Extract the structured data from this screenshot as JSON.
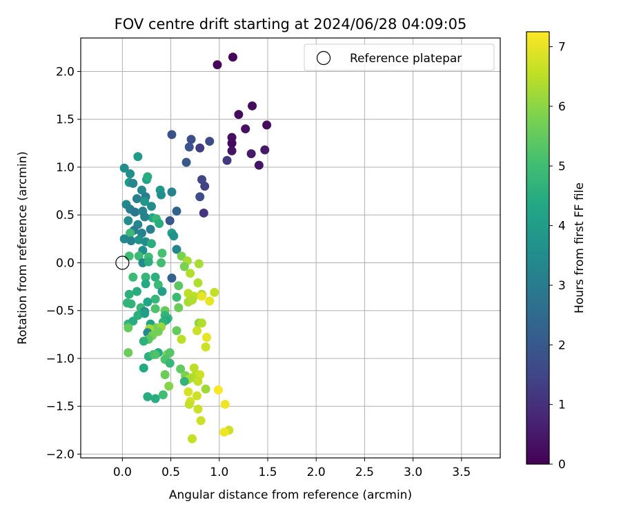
{
  "chart_data": {
    "type": "scatter",
    "title": "FOV centre drift starting at 2024/06/28 04:09:05",
    "xlabel": "Angular distance from reference (arcmin)",
    "ylabel": "Rotation from reference (arcmin)",
    "xlim": [
      -0.43,
      3.9
    ],
    "ylim": [
      -2.04,
      2.35
    ],
    "x_ticks": [
      0.0,
      0.5,
      1.0,
      1.5,
      2.0,
      2.5,
      3.0,
      3.5
    ],
    "y_ticks": [
      -2.0,
      -1.5,
      -1.0,
      -0.5,
      0.0,
      0.5,
      1.0,
      1.5,
      2.0
    ],
    "x_tick_labels": [
      "0.0",
      "0.5",
      "1.0",
      "1.5",
      "2.0",
      "2.5",
      "3.0",
      "3.5"
    ],
    "y_tick_labels": [
      "−2.0",
      "−1.5",
      "−1.0",
      "−0.5",
      "0.0",
      "0.5",
      "1.0",
      "1.5",
      "2.0"
    ],
    "grid": true,
    "legend": {
      "placement": "top-right",
      "entries": [
        {
          "label": "Reference platepar",
          "marker": "open-circle"
        }
      ]
    },
    "reference_point": {
      "x": 0.0,
      "y": 0.0
    },
    "colorbar": {
      "label": "Hours from first FF file",
      "range": [
        0,
        7.25
      ],
      "ticks": [
        0,
        1,
        2,
        3,
        4,
        5,
        6,
        7
      ],
      "colormap": "viridis"
    },
    "points_columns": [
      "x",
      "y",
      "hours"
    ],
    "points": [
      [
        0.98,
        2.07,
        0.1
      ],
      [
        1.14,
        2.15,
        0.1
      ],
      [
        1.2,
        1.55,
        0.2
      ],
      [
        1.34,
        1.64,
        0.2
      ],
      [
        1.27,
        1.4,
        0.3
      ],
      [
        1.49,
        1.44,
        0.2
      ],
      [
        1.13,
        1.31,
        0.3
      ],
      [
        1.13,
        1.25,
        0.2
      ],
      [
        1.13,
        1.17,
        0.4
      ],
      [
        1.33,
        1.14,
        0.5
      ],
      [
        1.47,
        1.18,
        0.5
      ],
      [
        1.41,
        1.02,
        0.4
      ],
      [
        1.08,
        1.07,
        1.2
      ],
      [
        0.51,
        1.34,
        1.8
      ],
      [
        0.71,
        1.29,
        1.7
      ],
      [
        0.69,
        1.21,
        1.9
      ],
      [
        0.8,
        1.2,
        1.3
      ],
      [
        0.9,
        1.27,
        1.6
      ],
      [
        0.66,
        1.05,
        2.0
      ],
      [
        0.82,
        0.87,
        1.5
      ],
      [
        0.85,
        0.8,
        1.4
      ],
      [
        0.8,
        0.69,
        1.7
      ],
      [
        0.84,
        0.52,
        1.1
      ],
      [
        0.56,
        0.54,
        2.3
      ],
      [
        0.49,
        0.44,
        2.0
      ],
      [
        0.51,
        0.74,
        3.2
      ],
      [
        0.39,
        0.76,
        3.8
      ],
      [
        0.4,
        0.71,
        3.6
      ],
      [
        0.3,
        0.59,
        3.5
      ],
      [
        0.25,
        0.87,
        4.2
      ],
      [
        0.16,
        1.11,
        3.9
      ],
      [
        0.02,
        0.99,
        3.5
      ],
      [
        0.08,
        0.93,
        3.6
      ],
      [
        0.07,
        0.84,
        3.9
      ],
      [
        0.11,
        0.83,
        3.3
      ],
      [
        0.26,
        0.9,
        4.5
      ],
      [
        0.2,
        0.76,
        3.4
      ],
      [
        0.24,
        0.69,
        3.0
      ],
      [
        0.15,
        0.67,
        3.1
      ],
      [
        0.23,
        0.64,
        3.8
      ],
      [
        0.04,
        0.61,
        3.4
      ],
      [
        0.08,
        0.56,
        3.1
      ],
      [
        0.13,
        0.53,
        2.9
      ],
      [
        0.21,
        0.54,
        3.2
      ],
      [
        0.31,
        0.47,
        4.3
      ],
      [
        0.35,
        0.46,
        4.8
      ],
      [
        0.38,
        0.41,
        4.5
      ],
      [
        0.06,
        0.44,
        3.5
      ],
      [
        0.16,
        0.4,
        3.3
      ],
      [
        0.23,
        0.48,
        3.2
      ],
      [
        0.29,
        0.35,
        3.1
      ],
      [
        0.12,
        0.34,
        3.0
      ],
      [
        0.08,
        0.31,
        4.9
      ],
      [
        0.2,
        0.31,
        3.2
      ],
      [
        0.51,
        0.31,
        4.0
      ],
      [
        0.53,
        0.28,
        3.7
      ],
      [
        0.02,
        0.25,
        3.4
      ],
      [
        0.09,
        0.23,
        3.2
      ],
      [
        0.17,
        0.24,
        3.7
      ],
      [
        0.24,
        0.22,
        3.5
      ],
      [
        0.3,
        0.2,
        4.5
      ],
      [
        0.56,
        0.14,
        3.3
      ],
      [
        0.21,
        0.13,
        3.6
      ],
      [
        0.41,
        0.1,
        5.1
      ],
      [
        0.07,
        0.07,
        5.0
      ],
      [
        0.17,
        0.07,
        4.9
      ],
      [
        0.27,
        0.06,
        5.0
      ],
      [
        0.21,
        0.0,
        3.4
      ],
      [
        0.27,
        0.01,
        4.6
      ],
      [
        0.4,
        0.0,
        5.0
      ],
      [
        0.61,
        0.07,
        5.8
      ],
      [
        0.67,
        0.02,
        6.3
      ],
      [
        0.64,
        -0.04,
        5.8
      ],
      [
        0.79,
        -0.01,
        6.3
      ],
      [
        0.7,
        -0.11,
        6.4
      ],
      [
        0.11,
        -0.15,
        4.9
      ],
      [
        0.24,
        -0.15,
        4.8
      ],
      [
        0.34,
        -0.15,
        4.6
      ],
      [
        0.51,
        -0.16,
        2.3
      ],
      [
        0.24,
        -0.22,
        4.4
      ],
      [
        0.37,
        -0.23,
        4.9
      ],
      [
        0.58,
        -0.24,
        5.4
      ],
      [
        0.78,
        -0.21,
        6.4
      ],
      [
        0.95,
        -0.31,
        6.6
      ],
      [
        0.41,
        -0.3,
        4.1
      ],
      [
        0.07,
        -0.33,
        4.6
      ],
      [
        0.15,
        -0.3,
        4.5
      ],
      [
        0.68,
        -0.32,
        6.5
      ],
      [
        0.74,
        -0.35,
        6.5
      ],
      [
        0.82,
        -0.33,
        6.3
      ],
      [
        0.82,
        -0.35,
        7.0
      ],
      [
        0.56,
        -0.36,
        4.9
      ],
      [
        0.34,
        -0.38,
        4.8
      ],
      [
        0.05,
        -0.42,
        4.7
      ],
      [
        0.09,
        -0.43,
        4.7
      ],
      [
        0.26,
        -0.41,
        4.3
      ],
      [
        0.68,
        -0.41,
        6.3
      ],
      [
        0.72,
        -0.39,
        6.4
      ],
      [
        0.9,
        -0.4,
        7.0
      ],
      [
        0.19,
        -0.47,
        4.8
      ],
      [
        0.34,
        -0.48,
        5.2
      ],
      [
        0.44,
        -0.5,
        5.5
      ],
      [
        0.58,
        -0.47,
        5.6
      ],
      [
        0.23,
        -0.51,
        3.4
      ],
      [
        0.16,
        -0.55,
        4.6
      ],
      [
        0.23,
        -0.53,
        4.1
      ],
      [
        0.44,
        -0.55,
        4.7
      ],
      [
        0.47,
        -0.58,
        4.8
      ],
      [
        0.45,
        -0.6,
        4.4
      ],
      [
        0.79,
        -0.63,
        6.0
      ],
      [
        0.06,
        -0.64,
        4.7
      ],
      [
        0.11,
        -0.61,
        4.5
      ],
      [
        0.29,
        -0.64,
        4.2
      ],
      [
        0.42,
        -0.62,
        4.6
      ],
      [
        0.82,
        -0.63,
        6.4
      ],
      [
        0.06,
        -0.68,
        5.5
      ],
      [
        0.35,
        -0.68,
        5.7
      ],
      [
        0.4,
        -0.67,
        6.1
      ],
      [
        0.28,
        -0.69,
        6.2
      ],
      [
        0.37,
        -0.72,
        5.7
      ],
      [
        0.56,
        -0.71,
        5.5
      ],
      [
        0.77,
        -0.71,
        6.7
      ],
      [
        0.26,
        -0.73,
        3.4
      ],
      [
        0.31,
        -0.76,
        5.7
      ],
      [
        0.27,
        -0.8,
        5.4
      ],
      [
        0.22,
        -0.82,
        4.6
      ],
      [
        0.61,
        -0.8,
        6.5
      ],
      [
        0.87,
        -0.78,
        7.0
      ],
      [
        0.86,
        -0.88,
        6.7
      ],
      [
        0.06,
        -0.94,
        5.6
      ],
      [
        0.27,
        -0.98,
        4.6
      ],
      [
        0.32,
        -0.96,
        4.9
      ],
      [
        0.37,
        -0.94,
        4.4
      ],
      [
        0.34,
        -0.96,
        5.2
      ],
      [
        0.46,
        -0.96,
        5.8
      ],
      [
        0.49,
        -0.94,
        5.3
      ],
      [
        0.44,
        -1.01,
        5.2
      ],
      [
        0.49,
        -1.05,
        4.8
      ],
      [
        0.6,
        -1.11,
        5.5
      ],
      [
        0.74,
        -1.1,
        6.5
      ],
      [
        0.22,
        -1.1,
        4.4
      ],
      [
        0.76,
        -1.17,
        6.5
      ],
      [
        0.8,
        -1.17,
        6.7
      ],
      [
        0.65,
        -1.18,
        5.8
      ],
      [
        0.72,
        -1.2,
        6.4
      ],
      [
        0.68,
        -1.22,
        6.3
      ],
      [
        0.64,
        -1.24,
        4.7
      ],
      [
        0.44,
        -1.17,
        5.6
      ],
      [
        0.78,
        -1.24,
        6.6
      ],
      [
        0.86,
        -1.32,
        6.2
      ],
      [
        0.99,
        -1.33,
        7.2
      ],
      [
        0.68,
        -1.35,
        6.8
      ],
      [
        0.26,
        -1.4,
        4.5
      ],
      [
        0.34,
        -1.42,
        4.5
      ],
      [
        0.42,
        -1.38,
        5.0
      ],
      [
        0.77,
        -1.39,
        6.7
      ],
      [
        0.7,
        -1.45,
        6.8
      ],
      [
        0.69,
        -1.48,
        6.6
      ],
      [
        0.48,
        -1.29,
        5.9
      ],
      [
        0.78,
        -1.53,
        6.7
      ],
      [
        1.06,
        -1.48,
        7.1
      ],
      [
        0.81,
        -1.65,
        6.7
      ],
      [
        1.1,
        -1.75,
        6.7
      ],
      [
        1.05,
        -1.77,
        7.1
      ],
      [
        0.72,
        -1.84,
        6.6
      ]
    ]
  }
}
